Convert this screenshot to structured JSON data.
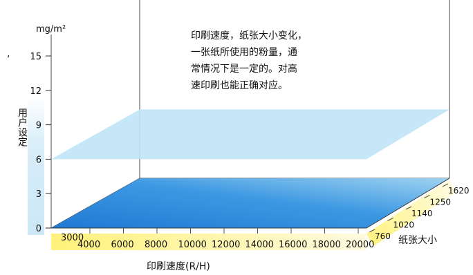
{
  "chart_data": {
    "type": "area",
    "title": "",
    "unit": "mg/m²",
    "y_axis": {
      "ticks": [
        0,
        3,
        6,
        9,
        12,
        15
      ],
      "range": [
        0,
        16
      ]
    },
    "x_axis": {
      "label": "印刷速度(R/H)",
      "ticks": [
        3000,
        4000,
        6000,
        8000,
        10000,
        12000,
        14000,
        16000,
        18000,
        20000
      ]
    },
    "z_axis": {
      "label": "纸张大小",
      "ticks": [
        760,
        1020,
        1140,
        1250,
        1620
      ]
    },
    "series": [
      {
        "name": "用户设定",
        "value": 6,
        "shape": "flat plane over all speeds and paper sizes"
      }
    ],
    "annotation": [
      "印刷速度，纸张大小变化，",
      "一张纸所使用的粉量，通",
      "常情况下是一定的。对高",
      "速印刷也能正确对应。"
    ],
    "stray_mark": ","
  },
  "colors": {
    "base_plane": "#2a86d8",
    "user_plane": "#bfe4f6",
    "speed_band": "#fff27a",
    "size_band": "#fff7b0",
    "y_band": "#cfe9f7"
  }
}
